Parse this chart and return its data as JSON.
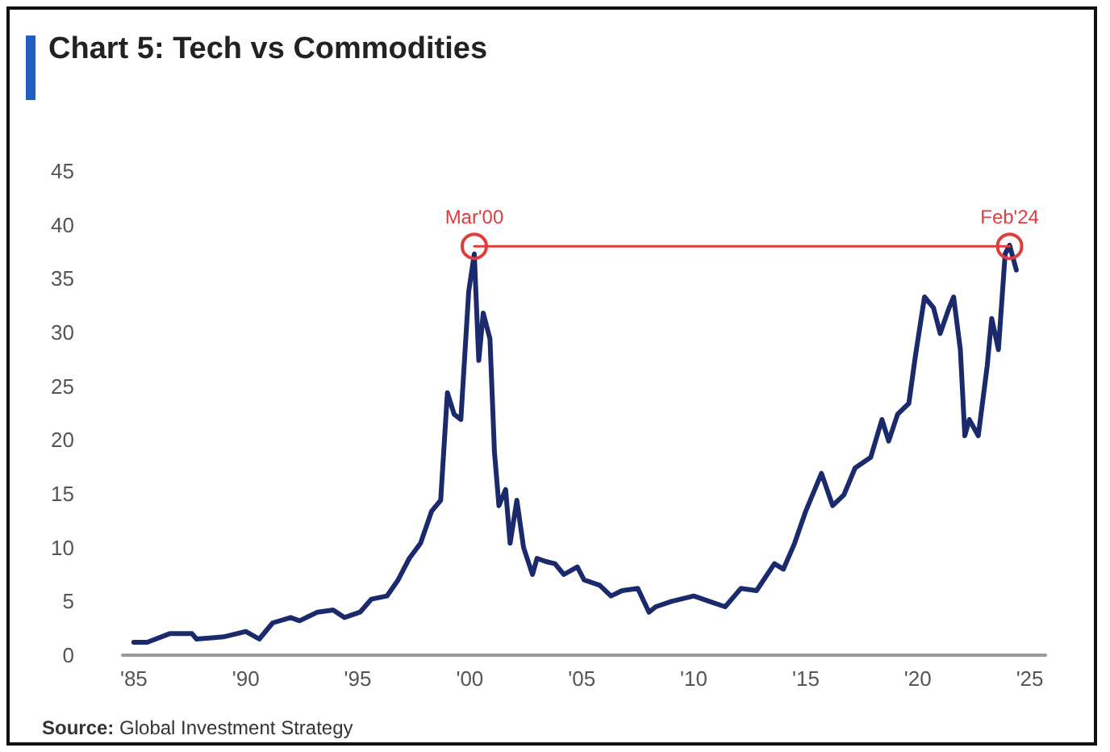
{
  "chart_data": {
    "type": "line",
    "title": "Chart 5: Tech vs Commodities",
    "xlim": [
      1984.5,
      2025.7
    ],
    "xticks": [
      {
        "value": 1985,
        "label": "'85"
      },
      {
        "value": 1990,
        "label": "'90"
      },
      {
        "value": 1995,
        "label": "'95"
      },
      {
        "value": 2000,
        "label": "'00"
      },
      {
        "value": 2005,
        "label": "'05"
      },
      {
        "value": 2010,
        "label": "'10"
      },
      {
        "value": 2015,
        "label": "'15"
      },
      {
        "value": 2020,
        "label": "'20"
      },
      {
        "value": 2025,
        "label": "'25"
      }
    ],
    "ylim": [
      0,
      45
    ],
    "yticks": [
      0,
      5,
      10,
      15,
      20,
      25,
      30,
      35,
      40,
      45
    ],
    "grid": false,
    "series": [
      {
        "color": "#1a2a6c",
        "marker": "none",
        "x": [
          1985.0,
          1985.6,
          1986.6,
          1987.6,
          1987.8,
          1989.0,
          1990.0,
          1990.6,
          1991.2,
          1992.0,
          1992.4,
          1993.2,
          1993.9,
          1994.4,
          1995.1,
          1995.6,
          1996.3,
          1996.8,
          1997.3,
          1997.8,
          1998.3,
          1998.7,
          1999.0,
          1999.3,
          1999.6,
          1999.95,
          2000.2,
          2000.4,
          2000.6,
          2000.9,
          2001.1,
          2001.3,
          2001.6,
          2001.8,
          2002.1,
          2002.4,
          2002.8,
          2003.0,
          2003.4,
          2003.8,
          2004.2,
          2004.8,
          2005.1,
          2005.8,
          2006.3,
          2006.8,
          2007.5,
          2008.0,
          2008.3,
          2009.0,
          2010.0,
          2010.7,
          2011.4,
          2012.1,
          2012.8,
          2013.6,
          2014.0,
          2014.5,
          2015.0,
          2015.7,
          2016.2,
          2016.7,
          2017.2,
          2017.9,
          2018.4,
          2018.7,
          2019.1,
          2019.6,
          2019.9,
          2020.3,
          2020.7,
          2021.0,
          2021.4,
          2021.6,
          2021.9,
          2022.1,
          2022.3,
          2022.7,
          2023.1,
          2023.3,
          2023.6,
          2023.9,
          2024.1,
          2024.4
        ],
        "values": [
          1.2,
          1.2,
          2.0,
          2.0,
          1.5,
          1.7,
          2.2,
          1.5,
          3.0,
          3.5,
          3.2,
          4.0,
          4.2,
          3.5,
          4.0,
          5.2,
          5.5,
          7.0,
          9.0,
          10.4,
          13.4,
          14.4,
          24.4,
          22.4,
          21.9,
          33.8,
          37.3,
          27.4,
          31.8,
          29.4,
          18.9,
          13.9,
          15.4,
          10.4,
          14.4,
          10.0,
          7.5,
          9.0,
          8.7,
          8.5,
          7.5,
          8.2,
          7.0,
          6.5,
          5.5,
          6.0,
          6.2,
          4.0,
          4.5,
          5.0,
          5.5,
          5.0,
          4.5,
          6.2,
          6.0,
          8.5,
          8.0,
          10.4,
          13.4,
          16.9,
          13.9,
          14.9,
          17.4,
          18.4,
          21.9,
          19.9,
          22.4,
          23.4,
          27.9,
          33.3,
          32.3,
          29.9,
          32.3,
          33.3,
          28.4,
          20.4,
          21.9,
          20.4,
          26.9,
          31.3,
          28.4,
          37.3,
          38.1,
          35.8
        ]
      },
      {
        "color": "#e03c3c",
        "marker": "circle",
        "x": [
          2000.2,
          2024.1
        ],
        "values": [
          38,
          38
        ]
      }
    ],
    "annotations": [
      {
        "text": "Mar'00",
        "x": 2000.2,
        "y": 38
      },
      {
        "text": "Feb'24",
        "x": 2024.1,
        "y": 38
      },
      "Source: Global Investment Strategy"
    ]
  }
}
